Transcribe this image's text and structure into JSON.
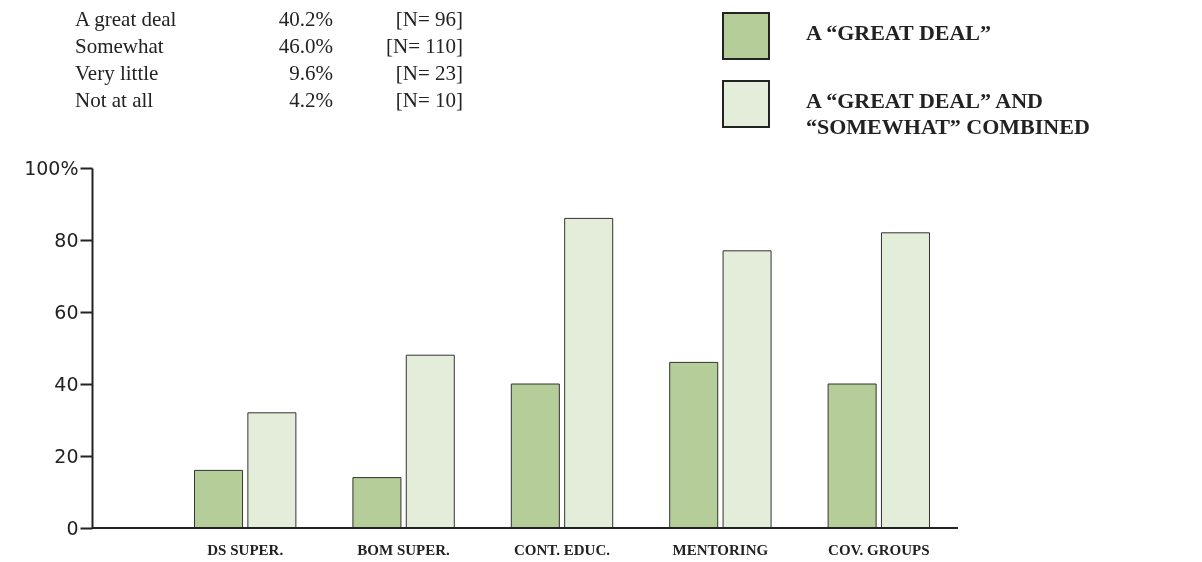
{
  "chart_data": {
    "type": "bar",
    "categories": [
      "DS SUPER.",
      "BOM SUPER.",
      "CONT. EDUC.",
      "MENTORING",
      "COV. GROUPS"
    ],
    "series": [
      {
        "name": "A “GREAT DEAL”",
        "color": "#b5cd98",
        "values": [
          16,
          14,
          40,
          46,
          40
        ]
      },
      {
        "name": "A “GREAT DEAL” AND “SOMEWHAT” COMBINED",
        "color": "#e4ecda",
        "values": [
          32,
          48,
          86,
          77,
          82
        ]
      }
    ],
    "ylim": [
      0,
      100
    ],
    "yticks": [
      0,
      20,
      40,
      60,
      80,
      {
        "value": 100,
        "label": "100%"
      }
    ],
    "legend": "top right",
    "annotations": [
      "A great deal",
      "40.2%",
      "[N= 96]",
      "Somewhat",
      "46.0%",
      "[N= 110]",
      "Very little",
      "9.6%",
      "[N= 23]",
      "Not at all",
      "4.2%",
      "[N= 10]"
    ]
  }
}
